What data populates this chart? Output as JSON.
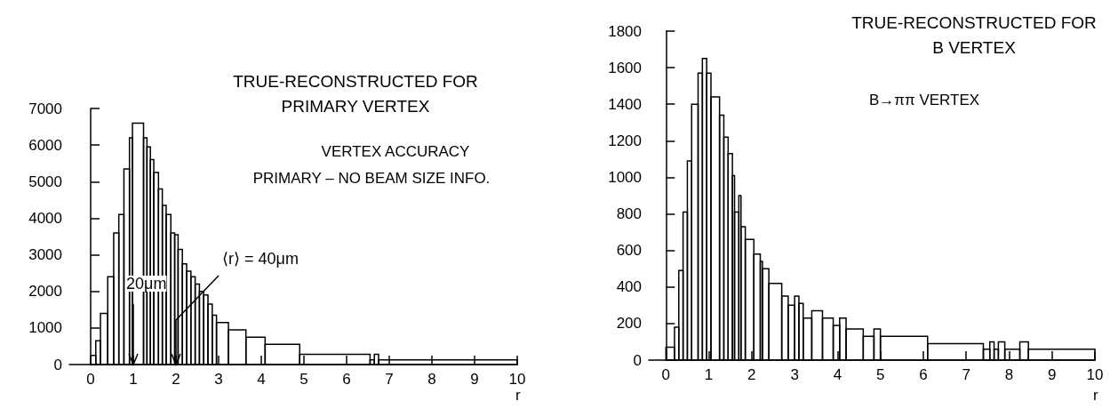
{
  "chart_data": [
    {
      "type": "histogram",
      "title": "TRUE-RECONSTRUCTED FOR\nPRIMARY VERTEX",
      "xlabel": "r",
      "color": "#000000",
      "grid": false,
      "bins": [
        0,
        0.12,
        0.23,
        0.4,
        0.54,
        0.66,
        0.78,
        0.91,
        0.98,
        1.24,
        1.32,
        1.4,
        1.48,
        1.59,
        1.68,
        1.77,
        1.88,
        1.97,
        2.05,
        2.15,
        2.25,
        2.35,
        2.45,
        2.55,
        2.65,
        2.75,
        2.85,
        2.95,
        3.23,
        3.64,
        4.09,
        4.9,
        6.55,
        6.65,
        6.75,
        10
      ],
      "values": [
        250,
        650,
        1400,
        2400,
        3600,
        4100,
        5350,
        6200,
        6600,
        6200,
        5950,
        5600,
        5250,
        4800,
        4350,
        4100,
        3600,
        3550,
        3150,
        2750,
        2550,
        2400,
        2200,
        2000,
        1900,
        1650,
        1350,
        1150,
        950,
        750,
        550,
        280,
        130,
        280,
        130
      ],
      "xlim": [
        -0.5,
        10
      ],
      "xticks": [
        0,
        1,
        2,
        3,
        4,
        5,
        6,
        7,
        8,
        9,
        10
      ],
      "ylim": [
        0,
        7000
      ],
      "yticks": [
        0,
        1000,
        2000,
        3000,
        4000,
        5000,
        6000,
        7000
      ],
      "annotations": [
        "VERTEX ACCURACY",
        "PRIMARY – NO BEAM SIZE INFO.",
        {
          "text": "20μm",
          "x": 1,
          "y": 0
        },
        {
          "text": "⟨r⟩ = 40μm",
          "x": 2,
          "y": 0
        }
      ]
    },
    {
      "type": "histogram",
      "title": "TRUE-RECONSTRUCTED FOR\nB VERTEX",
      "xlabel": "r",
      "color": "#000000",
      "grid": false,
      "bins": [
        0,
        0.2,
        0.3,
        0.4,
        0.5,
        0.6,
        0.75,
        0.85,
        0.95,
        1.05,
        1.25,
        1.35,
        1.45,
        1.55,
        1.6,
        1.7,
        1.75,
        1.85,
        2.05,
        2.2,
        2.25,
        2.4,
        2.7,
        2.85,
        3.0,
        3.1,
        3.2,
        3.4,
        3.65,
        3.9,
        4.05,
        4.2,
        4.6,
        4.85,
        5.0,
        6.1,
        7.4,
        7.55,
        7.65,
        7.75,
        7.9,
        8.25,
        8.45,
        10
      ],
      "values": [
        70,
        180,
        490,
        810,
        1090,
        1400,
        1570,
        1650,
        1570,
        1440,
        1340,
        1220,
        1130,
        1010,
        810,
        900,
        730,
        660,
        580,
        540,
        500,
        420,
        350,
        300,
        350,
        310,
        230,
        270,
        230,
        190,
        230,
        170,
        130,
        170,
        130,
        90,
        60,
        100,
        60,
        100,
        60,
        100,
        60
      ],
      "xlim": [
        -0.4,
        10
      ],
      "xticks": [
        0,
        1,
        2,
        3,
        4,
        5,
        6,
        7,
        8,
        9,
        10
      ],
      "ylim": [
        0,
        1800
      ],
      "yticks": [
        0,
        200,
        400,
        600,
        800,
        1000,
        1200,
        1400,
        1600,
        1800
      ],
      "annotations": [
        "B→ππ VERTEX"
      ]
    }
  ]
}
